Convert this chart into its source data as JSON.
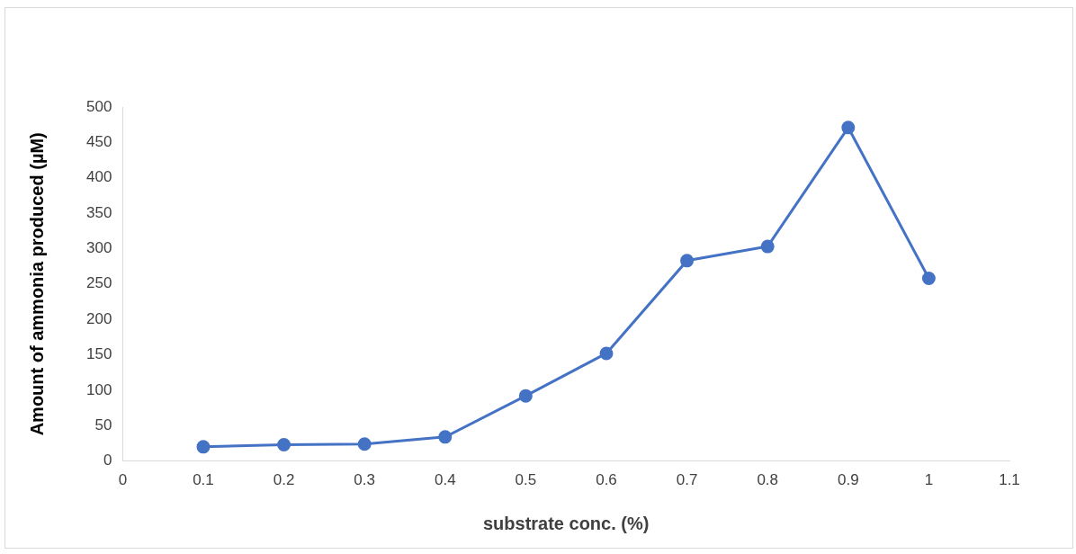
{
  "chart_data": {
    "type": "line",
    "xlabel": "substrate conc. (%)",
    "ylabel": "Amount of ammonia produced (µM)",
    "x": [
      0.1,
      0.2,
      0.3,
      0.4,
      0.5,
      0.6,
      0.7,
      0.8,
      0.9,
      1
    ],
    "series": [
      {
        "color": "#4472c4",
        "values": [
          20,
          23,
          24,
          34,
          92,
          152,
          283,
          303,
          471,
          258
        ]
      }
    ],
    "xlim": [
      0,
      1.1
    ],
    "xticks": [
      0,
      0.1,
      0.2,
      0.3,
      0.4,
      0.5,
      0.6,
      0.7,
      0.8,
      0.9,
      1,
      1.1
    ],
    "ylim": [
      0,
      500
    ],
    "yticks": [
      0,
      50,
      100,
      150,
      200,
      250,
      300,
      350,
      400,
      450,
      500
    ],
    "grid": false,
    "legend": false,
    "marker": "circle",
    "line_style": "solid"
  }
}
